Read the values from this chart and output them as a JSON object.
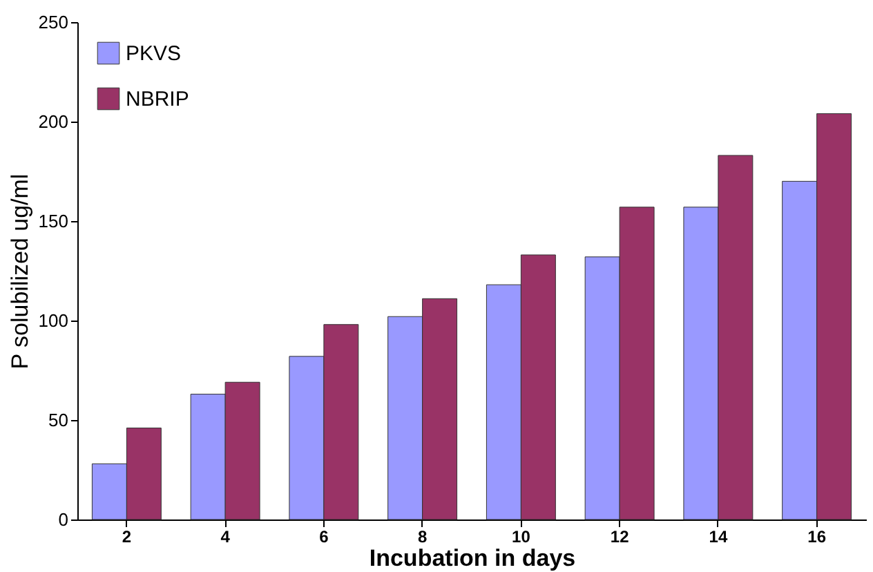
{
  "chart_data": {
    "type": "bar",
    "xlabel": "Incubation in days",
    "ylabel": "P solubilized ug/ml",
    "categories": [
      "2",
      "4",
      "6",
      "8",
      "10",
      "12",
      "14",
      "16"
    ],
    "series": [
      {
        "name": "PKVS",
        "color": "#9999ff",
        "values": [
          28,
          63,
          82,
          102,
          118,
          132,
          157,
          170
        ]
      },
      {
        "name": "NBRIP",
        "color": "#993366",
        "values": [
          46,
          69,
          98,
          111,
          133,
          157,
          183,
          204
        ]
      }
    ],
    "ylim": [
      0,
      250
    ],
    "yticks": [
      0,
      50,
      100,
      150,
      200,
      250
    ],
    "grid": false,
    "legend": "top left"
  }
}
